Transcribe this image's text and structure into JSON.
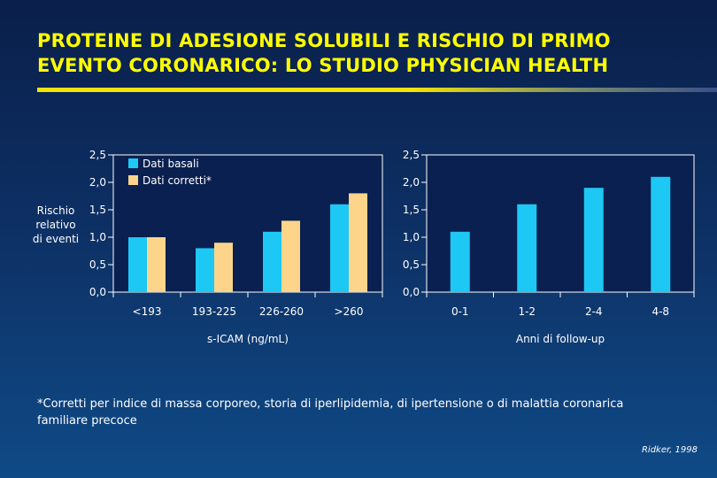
{
  "slide": {
    "title_line1": "PROTEINE DI ADESIONE SOLUBILI E RISCHIO DI PRIMO",
    "title_line2": "EVENTO CORONARICO: LO STUDIO PHYSICIAN HEALTH",
    "footnote_line1": "*Corretti per indice di massa corporeo, storia di iperlipidemia, di ipertensione o di malattia coronarica",
    "footnote_line2": "familiare precoce",
    "source": "Ridker, 1998"
  },
  "colors": {
    "title": "#ffff00",
    "series_basal": "#1ec8f5",
    "series_corrected": "#fdd58a",
    "panel": "#0a2050"
  },
  "chart_data": [
    {
      "type": "bar",
      "categories": [
        "<193",
        "193-225",
        "226-260",
        ">260"
      ],
      "series": [
        {
          "name": "Dati basali",
          "values": [
            1.0,
            0.8,
            1.1,
            1.6
          ]
        },
        {
          "name": "Dati corretti*",
          "values": [
            1.0,
            0.9,
            1.3,
            1.8
          ]
        }
      ],
      "xlabel": "s-ICAM (ng/mL)",
      "ylabel_lines": [
        "Rischio",
        "relativo",
        "di eventi"
      ],
      "ylim": [
        0,
        2.5
      ],
      "yticks": [
        "0,0",
        "0,5",
        "1,0",
        "1,5",
        "2,0",
        "2,5"
      ],
      "legend": "top-left",
      "grid": false
    },
    {
      "type": "bar",
      "categories": [
        "0-1",
        "1-2",
        "2-4",
        "4-8"
      ],
      "series": [
        {
          "values": [
            1.1,
            1.6,
            1.9,
            2.1
          ]
        }
      ],
      "xlabel": "Anni di follow-up",
      "ylim": [
        0,
        2.5
      ],
      "yticks": [
        "0,0",
        "0,5",
        "1,0",
        "1,5",
        "2,0",
        "2,5"
      ],
      "grid": false
    }
  ]
}
